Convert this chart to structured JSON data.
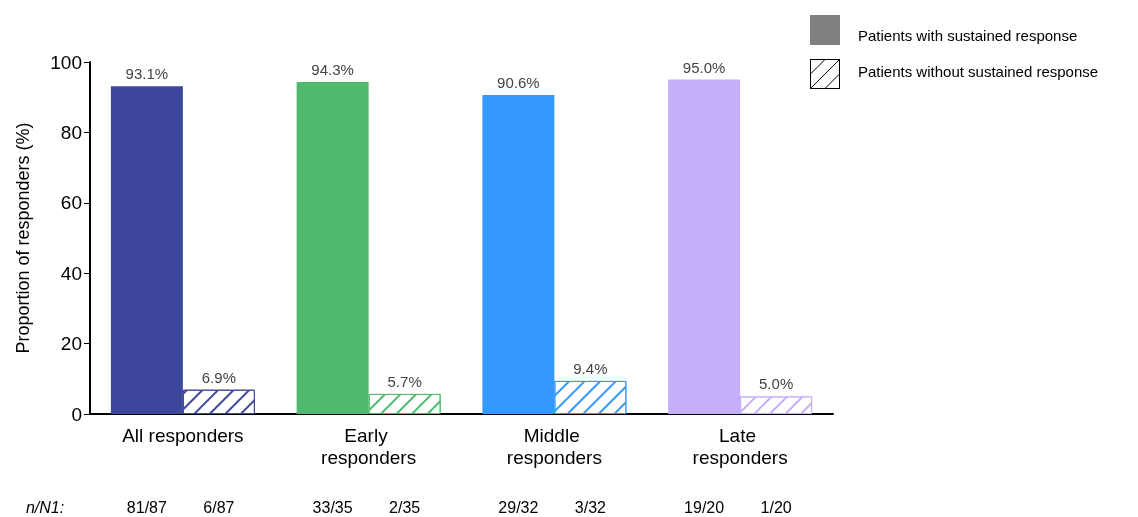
{
  "chart_data": {
    "type": "bar",
    "ylabel": "Proportion of responders (%)",
    "categories": [
      "All responders",
      "Early responders",
      "Middle responders",
      "Late responders"
    ],
    "series": [
      {
        "name": "Patients with sustained response",
        "color": "#808080",
        "colors": [
          "#3d479b",
          "#50bb6f",
          "#3399ff",
          "#c5aefa"
        ],
        "values": [
          93.1,
          94.3,
          90.6,
          95.0
        ],
        "value_labels": [
          "93.1%",
          "94.3%",
          "90.6%",
          "95.0%"
        ]
      },
      {
        "name": "Patients without sustained response",
        "color": "#000000",
        "colors": [
          "#3d479b",
          "#50bb6f",
          "#3399ff",
          "#c5aefa"
        ],
        "values": [
          6.9,
          5.7,
          9.4,
          5.0
        ],
        "value_labels": [
          "6.9%",
          "5.7%",
          "9.4%",
          "5.0%"
        ]
      }
    ],
    "ylim": [
      0,
      100
    ],
    "yticks": [
      0,
      20,
      40,
      60,
      80,
      100
    ],
    "grid": false,
    "legend": "top right",
    "annotations": [
      "n/N1:",
      "81/87",
      "6/87",
      "33/35",
      "2/35",
      "29/32",
      "3/32",
      "19/20",
      "1/20"
    ]
  }
}
